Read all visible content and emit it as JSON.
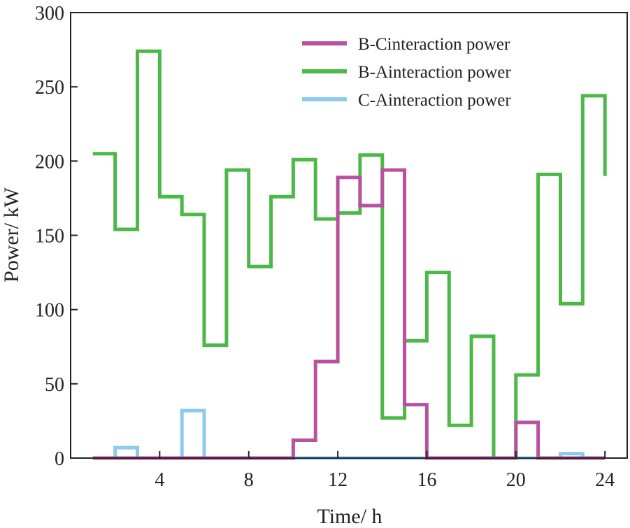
{
  "chart_data": {
    "type": "line",
    "step": true,
    "title": "",
    "xlabel": "Time/ h",
    "ylabel": "Power/ kW",
    "xlim": [
      0,
      25
    ],
    "ylim": [
      0,
      300
    ],
    "xticks": [
      4,
      8,
      12,
      16,
      20,
      24
    ],
    "yticks": [
      0,
      50,
      100,
      150,
      200,
      250,
      300
    ],
    "grid": false,
    "legend_position": "top-right",
    "x_start": 1,
    "x_end": 24,
    "series": [
      {
        "name": "B-Cinteraction power",
        "color": "#b8519e",
        "values": [
          0,
          0,
          0,
          0,
          0,
          0,
          0,
          0,
          0,
          12,
          65,
          189,
          170,
          194,
          36,
          0,
          0,
          0,
          0,
          24,
          0,
          0,
          0
        ]
      },
      {
        "name": "B-Ainteraction power",
        "color": "#4cb847",
        "values": [
          205,
          154,
          274,
          176,
          164,
          76,
          194,
          129,
          176,
          201,
          161,
          165,
          204,
          27,
          79,
          125,
          22,
          82,
          0,
          56,
          191,
          104,
          244
        ],
        "end_value": 190
      },
      {
        "name": "C-Ainteraction power",
        "color": "#8ecaee",
        "values": [
          0,
          7,
          0,
          0,
          32,
          0,
          0,
          0,
          0,
          0,
          0,
          0,
          0,
          0,
          0,
          0,
          0,
          0,
          0,
          0,
          0,
          3,
          0
        ]
      }
    ]
  }
}
